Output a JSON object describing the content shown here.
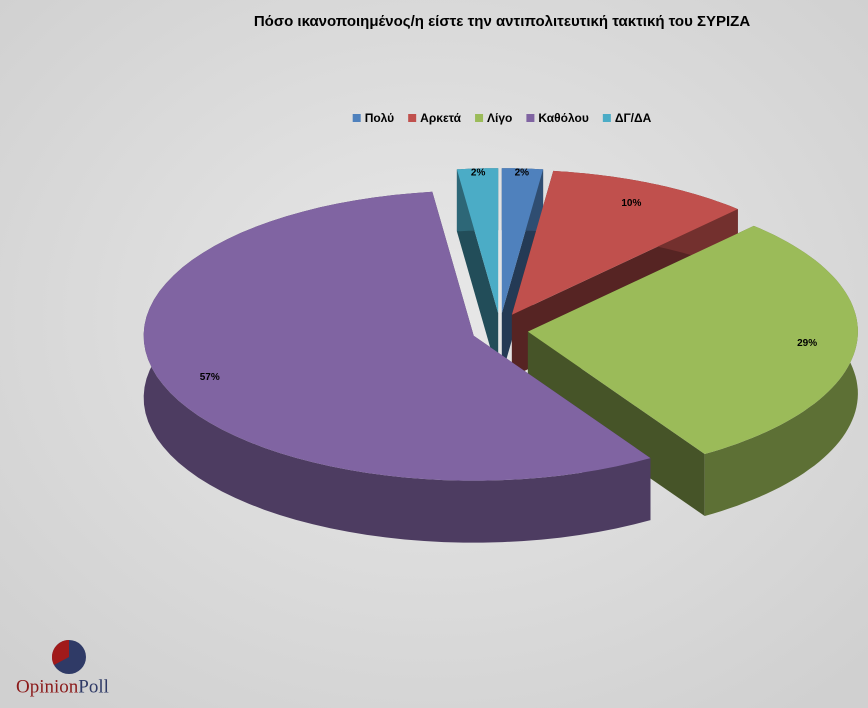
{
  "chart_data": {
    "type": "pie3d",
    "title": "Πόσο ικανοποιημένος/η είστε την αντιπολιτευτική τακτική του ΣΥΡΙΖΑ",
    "categories": [
      "Πολύ",
      "Αρκετά",
      "Λίγο",
      "Καθόλου",
      "ΔΓ/ΔΑ"
    ],
    "values": [
      2,
      10,
      29,
      57,
      2
    ],
    "value_labels": [
      "2%",
      "10%",
      "29%",
      "57%",
      "2%"
    ],
    "colors": [
      "#4f81bd",
      "#c0504d",
      "#9bbb59",
      "#8064a2",
      "#4bacc6"
    ],
    "legend": "top"
  },
  "brand": [
    "Opinion",
    "Poll"
  ]
}
